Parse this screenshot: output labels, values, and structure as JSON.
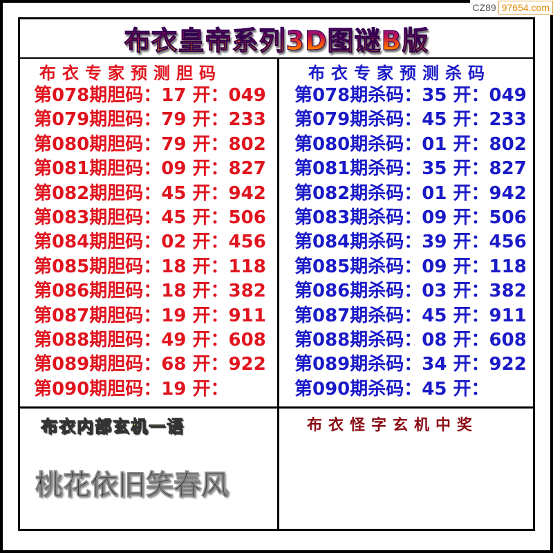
{
  "watermark": {
    "prefix": "CZ89",
    "site": "97654.com"
  },
  "title": "布衣皇帝系列3D图谜B版",
  "left": {
    "header": "布衣专家预测胆码",
    "rows": [
      "第078期胆码：17 开：049",
      "第079期胆码：79 开：233",
      "第080期胆码：79 开：802",
      "第081期胆码：09 开：827",
      "第082期胆码：45 开：942",
      "第083期胆码：45 开：506",
      "第084期胆码：02 开：456",
      "第085期胆码：18 开：118",
      "第086期胆码：18 开：382",
      "第087期胆码：19 开：911",
      "第088期胆码：49 开：608",
      "第089期胆码：68 开：922",
      "第090期胆码：19 开："
    ]
  },
  "right": {
    "header": "布衣专家预测杀码",
    "rows": [
      "第078期杀码：35 开：049",
      "第079期杀码：45 开：233",
      "第080期杀码：01 开：802",
      "第081期杀码：35 开：827",
      "第082期杀码：01 开：942",
      "第083期杀码：09 开：506",
      "第084期杀码：39 开：456",
      "第085期杀码：09 开：118",
      "第086期杀码：03 开：382",
      "第087期杀码：45 开：911",
      "第088期杀码：08 开：608",
      "第089期杀码：34 开：922",
      "第090期杀码：45 开："
    ]
  },
  "bottom_left": {
    "header": "布衣内部玄机一语",
    "slogan": "桃花依旧笑春风"
  },
  "bottom_right": {
    "header": "布衣怪字玄机中奖"
  },
  "colors": {
    "dan": "#e0141e",
    "sha": "#1a1ac8",
    "yellow_header": "#ffee00",
    "dark_red_header": "#8a0c14"
  }
}
